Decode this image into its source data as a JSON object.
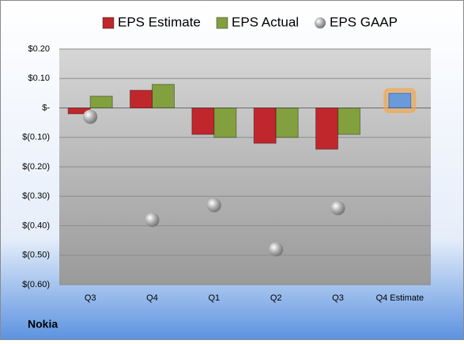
{
  "chart_data": {
    "type": "bar",
    "categories": [
      "Q3",
      "Q4",
      "Q1",
      "Q2",
      "Q3",
      "Q4 Estimate"
    ],
    "series": [
      {
        "name": "EPS Estimate",
        "color": "#c0272d",
        "colors": [
          "#c0272d",
          "#c0272d",
          "#c0272d",
          "#c0272d",
          "#c0272d",
          "#6a9ad8"
        ],
        "values": [
          -0.02,
          0.06,
          -0.09,
          -0.12,
          -0.14,
          0.05
        ]
      },
      {
        "name": "EPS Actual",
        "color": "#82a03e",
        "values": [
          0.04,
          0.08,
          -0.1,
          -0.1,
          -0.09,
          null
        ]
      },
      {
        "name": "EPS GAAP",
        "color": "#a6a6a6",
        "type": "scatter",
        "values": [
          -0.03,
          -0.38,
          -0.33,
          -0.48,
          -0.34,
          null
        ]
      }
    ],
    "ylim": [
      -0.6,
      0.2
    ],
    "yticks": [
      {
        "value": 0.2,
        "label": "$0.20"
      },
      {
        "value": 0.1,
        "label": "$0.10"
      },
      {
        "value": 0,
        "label": "$-"
      },
      {
        "value": -0.1,
        "label": "$(0.10)"
      },
      {
        "value": -0.2,
        "label": "$(0.20)"
      },
      {
        "value": -0.3,
        "label": "$(0.30)"
      },
      {
        "value": -0.4,
        "label": "$(0.40)"
      },
      {
        "value": -0.5,
        "label": "$(0.50)"
      },
      {
        "value": -0.6,
        "label": "$(0.60)"
      }
    ],
    "grid": true,
    "legend": "top",
    "footer": "Nokia"
  }
}
